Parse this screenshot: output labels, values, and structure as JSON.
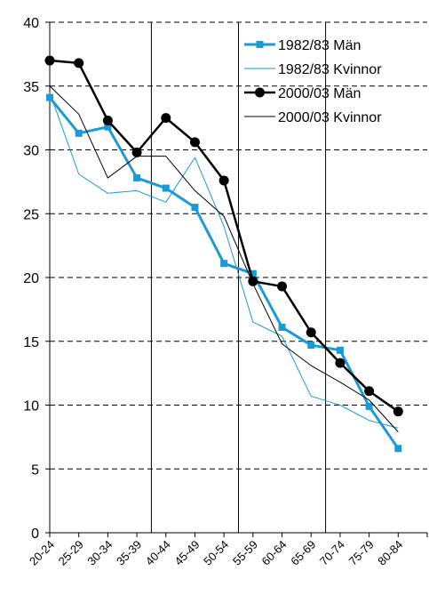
{
  "chart_data": {
    "type": "line",
    "categories": [
      "20-24",
      "25-29",
      "30-34",
      "35-39",
      "40-44",
      "45-49",
      "50-54",
      "55-59",
      "60-64",
      "65-69",
      "70-74",
      "75-79",
      "80-84"
    ],
    "ylim": [
      0,
      40
    ],
    "yticks": [
      0,
      5,
      10,
      15,
      20,
      25,
      30,
      35,
      40
    ],
    "grid": "horizontal dashed",
    "legend_position": "top-right",
    "vertical_divider_after_categories": [
      "35-39",
      "50-54",
      "65-69"
    ],
    "series": [
      {
        "name": "1982/83 Män",
        "color": "#1a9ad6",
        "style": "thick line, square markers",
        "values": [
          34.1,
          31.3,
          31.8,
          27.8,
          27.0,
          25.5,
          21.1,
          20.3,
          16.1,
          14.7,
          14.3,
          9.9,
          6.6
        ]
      },
      {
        "name": "1982/83 Kvinnor",
        "color": "#1a9ad6",
        "style": "thin line",
        "values": [
          34.5,
          28.1,
          26.6,
          26.8,
          25.9,
          29.4,
          24.0,
          16.5,
          15.4,
          10.7,
          10.0,
          8.8,
          8.2
        ]
      },
      {
        "name": "2000/03 Män",
        "color": "#000000",
        "style": "thick line, circle markers",
        "values": [
          37.0,
          36.8,
          32.3,
          29.8,
          32.5,
          30.6,
          27.6,
          19.7,
          19.3,
          15.7,
          13.3,
          11.1,
          9.5
        ]
      },
      {
        "name": "2000/03 Kvinnor",
        "color": "#000000",
        "style": "thin line",
        "values": [
          35.0,
          32.8,
          27.8,
          29.5,
          29.5,
          26.8,
          24.8,
          19.5,
          14.8,
          13.1,
          11.8,
          10.4,
          7.9
        ]
      }
    ]
  }
}
